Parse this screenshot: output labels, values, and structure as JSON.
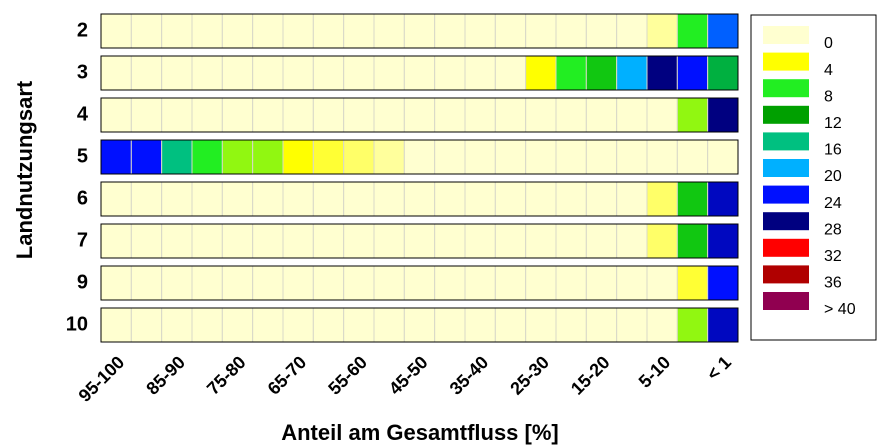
{
  "chart_data": {
    "type": "heatmap",
    "x_label": "Anteil am Gesamtfluss [%]",
    "y_label": "Landnutzungsart",
    "categories": [
      "95-100",
      null,
      "85-90",
      null,
      "75-80",
      null,
      "65-70",
      null,
      "55-60",
      null,
      "45-50",
      null,
      "35-40",
      null,
      "25-30",
      null,
      "15-20",
      null,
      "5-10",
      null,
      "< 1"
    ],
    "rows": [
      "2",
      "3",
      "4",
      "5",
      "6",
      "7",
      "9",
      "10"
    ],
    "values": [
      [
        0,
        0,
        0,
        0,
        0,
        0,
        0,
        0,
        0,
        0,
        0,
        0,
        0,
        0,
        0,
        0,
        0,
        0,
        1,
        8,
        22
      ],
      [
        0,
        0,
        0,
        0,
        0,
        0,
        0,
        0,
        0,
        0,
        0,
        0,
        0,
        0,
        4,
        8,
        10,
        20,
        28,
        24,
        14
      ],
      [
        0,
        0,
        0,
        0,
        0,
        0,
        0,
        0,
        0,
        0,
        0,
        0,
        0,
        0,
        0,
        0,
        0,
        0,
        0,
        6,
        28
      ],
      [
        24,
        24,
        16,
        8,
        6,
        6,
        4,
        3,
        2,
        1,
        0,
        0,
        0,
        0,
        0,
        0,
        0,
        0,
        0,
        0,
        0
      ],
      [
        0,
        0,
        0,
        0,
        0,
        0,
        0,
        0,
        0,
        0,
        0,
        0,
        0,
        0,
        0,
        0,
        0,
        0,
        2,
        10,
        26
      ],
      [
        0,
        0,
        0,
        0,
        0,
        0,
        0,
        0,
        0,
        0,
        0,
        0,
        0,
        0,
        0,
        0,
        0,
        0,
        2,
        10,
        26
      ],
      [
        0,
        0,
        0,
        0,
        0,
        0,
        0,
        0,
        0,
        0,
        0,
        0,
        0,
        0,
        0,
        0,
        0,
        0,
        0,
        3,
        24
      ],
      [
        0,
        0,
        0,
        0,
        0,
        0,
        0,
        0,
        0,
        0,
        0,
        0,
        0,
        0,
        0,
        0,
        0,
        0,
        0,
        6,
        26
      ]
    ],
    "levels": [
      0,
      4,
      8,
      12,
      16,
      20,
      24,
      28,
      32,
      36,
      {
        "value": 40,
        "label": "> 40"
      }
    ],
    "level_colors": [
      "#ffffd0",
      "#ffff00",
      "#22ee22",
      "#00a000",
      "#00c080",
      "#00b0ff",
      "#0010ff",
      "#000080",
      "#ff0000",
      "#b00000",
      "#900050"
    ]
  }
}
